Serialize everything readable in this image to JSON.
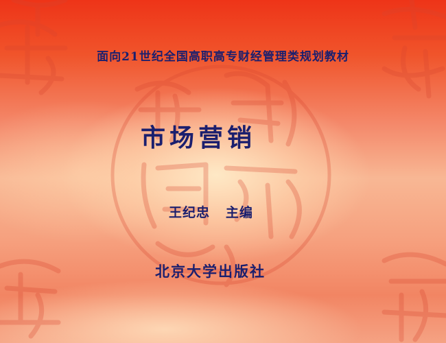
{
  "slide": {
    "series": "面向21世纪全国高职高专财经管理类规划教材",
    "title": "市场营销",
    "editor": "王纪忠   主编",
    "publisher": "北京大学出版社"
  },
  "colors": {
    "text": "#1b1f6e",
    "background_red": "#ee3418",
    "background_light": "#f8b794",
    "seal_pattern": "#d8452f"
  },
  "decoration": {
    "background_pattern": "seal-script-stamps"
  }
}
